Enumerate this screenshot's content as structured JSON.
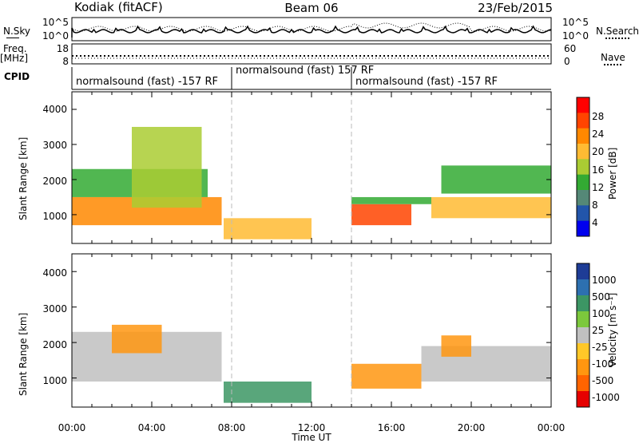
{
  "header": {
    "station": "Kodiak (fitACF)",
    "beam": "Beam 06",
    "date": "23/Feb/2015"
  },
  "summary": {
    "nsky_label": "N.Sky",
    "nsky_ticks": [
      "10^5",
      "10^0"
    ],
    "nsearch_label": "N.Search",
    "nsearch_ticks": [
      "10^5",
      "10^0"
    ],
    "freq_label": "Freq.",
    "freq_unit": "[MHz]",
    "freq_ticks": [
      "18",
      "8"
    ],
    "nave_label": "Nave",
    "nave_ticks": [
      "60",
      "0"
    ],
    "cpid_label": "CPID",
    "cpid_segments": [
      "normalsound (fast) -157 RF",
      "normalsound (fast) 157 RF",
      "normalsound (fast) -157 RF"
    ]
  },
  "axes": {
    "ylabel": "Slant Range [km]",
    "yticks": [
      "4000",
      "3000",
      "2000",
      "1000"
    ],
    "xticks": [
      "00:00",
      "04:00",
      "08:00",
      "12:00",
      "16:00",
      "20:00",
      "00:00"
    ],
    "xlabel": "Time UT"
  },
  "power_bar": {
    "label": "Power [dB]",
    "ticks": [
      "28",
      "24",
      "20",
      "16",
      "12",
      "8",
      "4"
    ],
    "colors": [
      "#ff0000",
      "#ff4400",
      "#ff8800",
      "#ffbb33",
      "#aacc33",
      "#33aa33",
      "#558877",
      "#2255aa",
      "#0000ee"
    ]
  },
  "velocity_bar": {
    "label": "Velocity [m s⁻¹]",
    "ticks": [
      "1000",
      "500",
      "100",
      "25",
      "-25",
      "-100",
      "-500",
      "-1000"
    ],
    "colors": [
      "#1e3c96",
      "#2d70b0",
      "#3c9664",
      "#7cc83c",
      "#c0c0c0",
      "#ffc828",
      "#ff9610",
      "#ff6400",
      "#e60000"
    ]
  },
  "chart_data": [
    {
      "type": "heatmap",
      "title": "Power",
      "xlabel": "Time UT",
      "ylabel": "Slant Range [km]",
      "xlim": [
        0,
        24
      ],
      "ylim": [
        180,
        4500
      ],
      "colorbar_label": "Power [dB]",
      "colorbar_ticks": [
        4,
        8,
        12,
        16,
        20,
        24,
        28
      ],
      "regions": [
        {
          "t": [
            0.0,
            7.5
          ],
          "r": [
            700,
            1500
          ],
          "value": 24
        },
        {
          "t": [
            0.0,
            6.8
          ],
          "r": [
            1500,
            2300
          ],
          "value": 14
        },
        {
          "t": [
            3.0,
            6.5
          ],
          "r": [
            1200,
            3500
          ],
          "value": 18
        },
        {
          "t": [
            7.6,
            12.0
          ],
          "r": [
            300,
            900
          ],
          "value": 20
        },
        {
          "t": [
            14.0,
            17.0
          ],
          "r": [
            700,
            1300
          ],
          "value": 28
        },
        {
          "t": [
            14.0,
            18.0
          ],
          "r": [
            1300,
            1500
          ],
          "value": 12
        },
        {
          "t": [
            18.0,
            24.0
          ],
          "r": [
            900,
            1500
          ],
          "value": 22
        },
        {
          "t": [
            18.5,
            24.0
          ],
          "r": [
            1600,
            2400
          ],
          "value": 14
        }
      ]
    },
    {
      "type": "heatmap",
      "title": "Velocity",
      "xlabel": "Time UT",
      "ylabel": "Slant Range [km]",
      "xlim": [
        0,
        24
      ],
      "ylim": [
        180,
        4500
      ],
      "colorbar_label": "Velocity [m s⁻¹]",
      "colorbar_ticks": [
        -1000,
        -500,
        -100,
        -25,
        25,
        100,
        500,
        1000
      ],
      "regions": [
        {
          "t": [
            0.0,
            7.5
          ],
          "r": [
            900,
            2300
          ],
          "value": 0
        },
        {
          "t": [
            2.0,
            4.5
          ],
          "r": [
            1700,
            2500
          ],
          "value": -200
        },
        {
          "t": [
            7.6,
            12.0
          ],
          "r": [
            300,
            900
          ],
          "value": 150
        },
        {
          "t": [
            14.0,
            17.5
          ],
          "r": [
            700,
            1400
          ],
          "value": -300
        },
        {
          "t": [
            17.5,
            24.0
          ],
          "r": [
            900,
            1900
          ],
          "value": 0
        },
        {
          "t": [
            18.5,
            20.0
          ],
          "r": [
            1600,
            2200
          ],
          "value": -150
        }
      ]
    }
  ]
}
